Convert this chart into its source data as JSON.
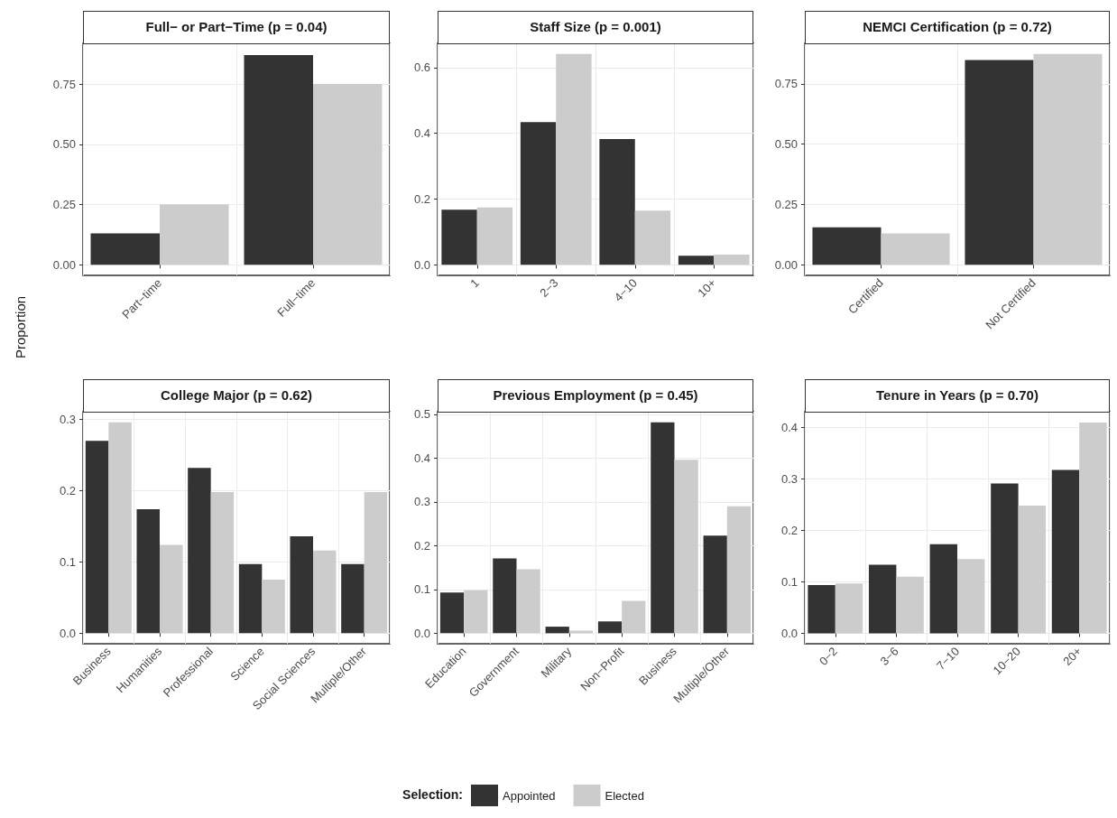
{
  "chart_data": [
    {
      "type": "bar",
      "title": "Full− or Part−Time (p = 0.04)",
      "ylabel": "Proportion",
      "categories": [
        "Part−time",
        "Full−time"
      ],
      "series": [
        {
          "color": "#333333",
          "values": [
            0.13,
            0.87
          ]
        },
        {
          "color": "#cccccc",
          "values": [
            0.25,
            0.75
          ]
        }
      ],
      "ylim": [
        -0.044,
        0.919
      ],
      "yticks": [
        {
          "value": 0,
          "label": "0.00"
        },
        {
          "value": 0.25,
          "label": "0.25"
        },
        {
          "value": 0.5,
          "label": "0.50"
        },
        {
          "value": 0.75,
          "label": "0.75"
        }
      ],
      "grid": true
    },
    {
      "type": "bar",
      "title": "Staff Size (p = 0.001)",
      "categories": [
        "1",
        "2−3",
        "4−10",
        "10+"
      ],
      "series": [
        {
          "color": "#333333",
          "values": [
            0.168,
            0.434,
            0.383,
            0.028
          ]
        },
        {
          "color": "#cccccc",
          "values": [
            0.175,
            0.642,
            0.165,
            0.031
          ]
        }
      ],
      "ylim": [
        -0.032,
        0.674
      ],
      "yticks": [
        {
          "value": 0,
          "label": "0.0"
        },
        {
          "value": 0.2,
          "label": "0.2"
        },
        {
          "value": 0.4,
          "label": "0.4"
        },
        {
          "value": 0.6,
          "label": "0.6"
        }
      ],
      "grid": true
    },
    {
      "type": "bar",
      "title": "NEMCI Certification (p = 0.72)",
      "categories": [
        "Certified",
        "Not Certified"
      ],
      "series": [
        {
          "color": "#333333",
          "values": [
            0.155,
            0.849
          ]
        },
        {
          "color": "#cccccc",
          "values": [
            0.13,
            0.874
          ]
        }
      ],
      "ylim": [
        -0.044,
        0.918
      ],
      "yticks": [
        {
          "value": 0,
          "label": "0.00"
        },
        {
          "value": 0.25,
          "label": "0.25"
        },
        {
          "value": 0.5,
          "label": "0.50"
        },
        {
          "value": 0.75,
          "label": "0.75"
        }
      ],
      "grid": true
    },
    {
      "type": "bar",
      "title": "College Major (p = 0.62)",
      "categories": [
        "Business",
        "Humanities",
        "Professional",
        "Science",
        "Social Sciences",
        "Multiple/Other"
      ],
      "series": [
        {
          "color": "#333333",
          "values": [
            0.27,
            0.174,
            0.232,
            0.097,
            0.136,
            0.097
          ]
        },
        {
          "color": "#cccccc",
          "values": [
            0.296,
            0.124,
            0.198,
            0.075,
            0.116,
            0.198
          ]
        }
      ],
      "ylim": [
        -0.015,
        0.311
      ],
      "yticks": [
        {
          "value": 0,
          "label": "0.0"
        },
        {
          "value": 0.1,
          "label": "0.1"
        },
        {
          "value": 0.2,
          "label": "0.2"
        },
        {
          "value": 0.3,
          "label": "0.3"
        }
      ],
      "grid": true
    },
    {
      "type": "bar",
      "title": "Previous Employment (p = 0.45)",
      "categories": [
        "Education",
        "Government",
        "Military",
        "Non−Profit",
        "Business",
        "Multiple/Other"
      ],
      "series": [
        {
          "name": "Appointed",
          "color": "#333333",
          "values": [
            0.093,
            0.171,
            0.015,
            0.027,
            0.482,
            0.223
          ]
        },
        {
          "name": "Elected",
          "color": "#cccccc",
          "values": [
            0.098,
            0.146,
            0.006,
            0.074,
            0.396,
            0.29
          ]
        }
      ],
      "ylim": [
        -0.024,
        0.506
      ],
      "yticks": [
        {
          "value": 0,
          "label": "0.0"
        },
        {
          "value": 0.1,
          "label": "0.1"
        },
        {
          "value": 0.2,
          "label": "0.2"
        },
        {
          "value": 0.3,
          "label": "0.3"
        },
        {
          "value": 0.4,
          "label": "0.4"
        },
        {
          "value": 0.5,
          "label": "0.5"
        }
      ],
      "grid": true,
      "legend": "bottom",
      "legend_title": "Selection:"
    },
    {
      "type": "bar",
      "title": "Tenure in Years (p = 0.70)",
      "categories": [
        "0−2",
        "3−6",
        "7−10",
        "10−20",
        "20+"
      ],
      "series": [
        {
          "color": "#333333",
          "values": [
            0.094,
            0.133,
            0.173,
            0.291,
            0.317
          ]
        },
        {
          "color": "#cccccc",
          "values": [
            0.097,
            0.11,
            0.144,
            0.248,
            0.409
          ]
        }
      ],
      "ylim": [
        -0.02,
        0.43
      ],
      "yticks": [
        {
          "value": 0,
          "label": "0.0"
        },
        {
          "value": 0.1,
          "label": "0.1"
        },
        {
          "value": 0.2,
          "label": "0.2"
        },
        {
          "value": 0.3,
          "label": "0.3"
        },
        {
          "value": 0.4,
          "label": "0.4"
        }
      ],
      "grid": true
    }
  ]
}
